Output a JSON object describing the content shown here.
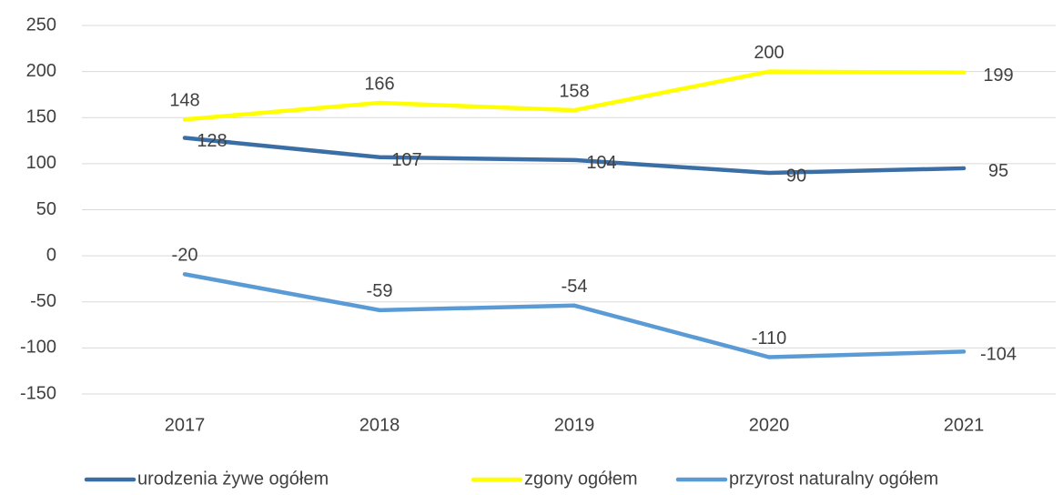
{
  "chart_data": {
    "type": "line",
    "categories": [
      "2017",
      "2018",
      "2019",
      "2020",
      "2021"
    ],
    "series": [
      {
        "name": "urodzenia żywe ogółem",
        "color": "#3a6ea5",
        "values": [
          128,
          107,
          104,
          90,
          95
        ]
      },
      {
        "name": "zgony ogółem",
        "color": "#ffff00",
        "values": [
          148,
          166,
          158,
          200,
          199
        ]
      },
      {
        "name": "przyrost naturalny ogółem",
        "color": "#5b9bd5",
        "values": [
          -20,
          -59,
          -54,
          -110,
          -104
        ]
      }
    ],
    "ylim": [
      -150,
      250
    ],
    "yticks": [
      -150,
      -100,
      -50,
      0,
      50,
      100,
      150,
      200,
      250
    ],
    "grid": true,
    "legend": "bottom"
  }
}
